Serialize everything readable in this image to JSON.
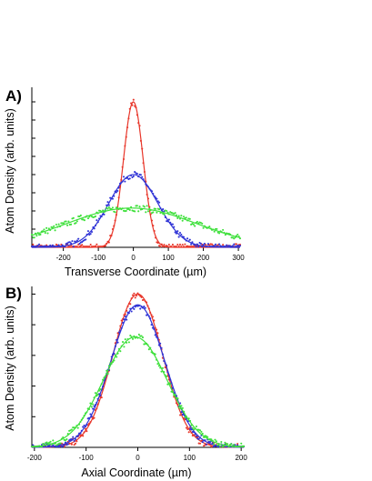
{
  "chart_data": [
    {
      "type": "scatter",
      "panel": "A)",
      "xlabel": "Transverse Coordinate (µm)",
      "ylabel": "Atom Density (arb. units)",
      "xlim": [
        -290,
        305
      ],
      "ylim": [
        0,
        1.1
      ],
      "xticks": [
        -200,
        -100,
        0,
        100,
        200,
        300
      ],
      "xtick_labels": [
        "-200",
        "-100",
        "0",
        "100",
        "200",
        "300"
      ],
      "yticks": [
        0,
        0.125,
        0.25,
        0.375,
        0.5,
        0.625,
        0.75,
        0.875,
        1.0
      ],
      "grid": false,
      "series": [
        {
          "color": "#e8362a",
          "amplitude": 1.0,
          "center": 0,
          "width": 28,
          "offset": 0.0
        },
        {
          "color": "#2f33d6",
          "amplitude": 0.5,
          "center": 0,
          "width": 70,
          "offset": 0.0
        },
        {
          "color": "#3fe03c",
          "amplitude": 0.27,
          "center": -5,
          "width": 185,
          "offset": 0.0
        }
      ]
    },
    {
      "type": "scatter",
      "panel": "B)",
      "xlabel": "Axial Coordinate (µm)",
      "ylabel": "Atom Density (arb. units)",
      "xlim": [
        -205,
        205
      ],
      "ylim": [
        0,
        1.05
      ],
      "xticks": [
        -200,
        -100,
        0,
        100,
        200
      ],
      "xtick_labels": [
        "-200",
        "-100",
        "0",
        "100",
        "200"
      ],
      "yticks": [
        0,
        0.2,
        0.4,
        0.6,
        0.8,
        1.0
      ],
      "grid": false,
      "series": [
        {
          "color": "#e8362a",
          "amplitude": 1.0,
          "center": 0,
          "width": 48,
          "offset": 0.0
        },
        {
          "color": "#2f33d6",
          "amplitude": 0.93,
          "center": 0,
          "width": 52,
          "offset": 0.0
        },
        {
          "color": "#3fe03c",
          "amplitude": 0.72,
          "center": -5,
          "width": 62,
          "offset": 0.0
        }
      ]
    }
  ]
}
